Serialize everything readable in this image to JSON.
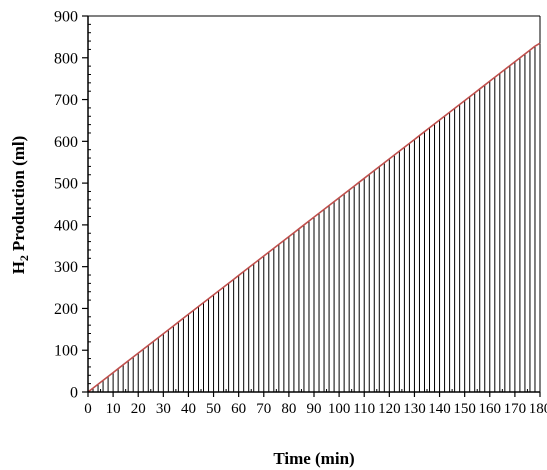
{
  "chart_data": {
    "type": "area",
    "xlabel": "Time (min)",
    "ylabel": "Production (ml)",
    "ylabel_prefix": "H",
    "ylabel_subscript": "2",
    "xlim": [
      0,
      180
    ],
    "ylim": [
      0,
      900
    ],
    "x_ticks": [
      "0",
      "10",
      "20",
      "30",
      "40",
      "50",
      "60",
      "70",
      "80",
      "90",
      "100",
      "110",
      "120",
      "130",
      "140",
      "150",
      "160",
      "170",
      "180"
    ],
    "y_ticks": [
      "0",
      "100",
      "200",
      "300",
      "400",
      "500",
      "600",
      "700",
      "800",
      "900"
    ],
    "grid": false,
    "x_start": 2,
    "x_end": 180,
    "x_step": 2,
    "slope_ml_per_min": 4.65,
    "final_value": 835,
    "colors": {
      "line": "#c0504d",
      "fill_lines": "#000000",
      "axis": "#000000"
    }
  }
}
